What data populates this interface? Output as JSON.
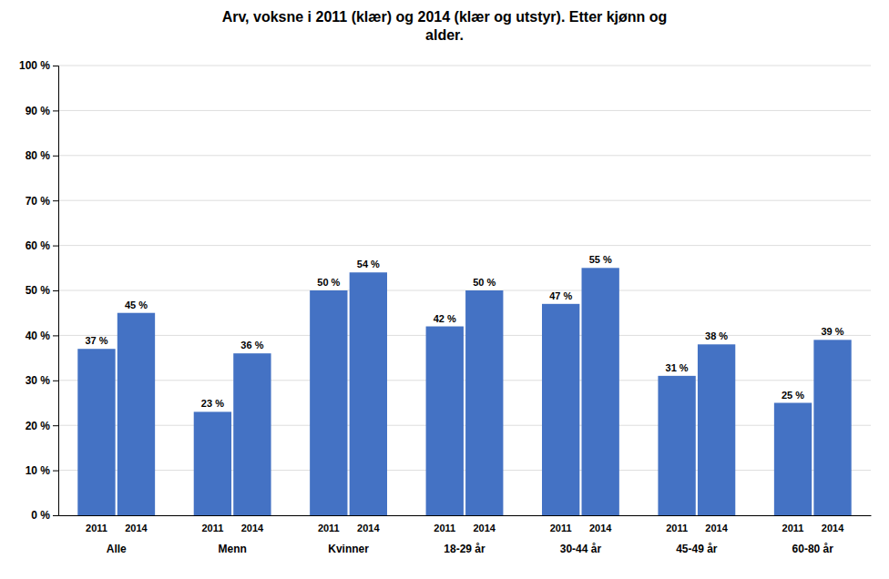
{
  "chart_data": {
    "type": "bar",
    "title": "Arv, voksne i 2011 (klær) og 2014 (klær og utstyr). Etter kjønn og\nalder.",
    "categories": [
      "Alle",
      "Menn",
      "Kvinner",
      "18-29 år",
      "30-44 år",
      "45-49 år",
      "60-80 år"
    ],
    "series": [
      {
        "name": "2011",
        "color": "#4472C4",
        "values": [
          37,
          23,
          50,
          42,
          47,
          31,
          25
        ],
        "value_labels": [
          "37 %",
          "23 %",
          "50 %",
          "42 %",
          "47 %",
          "31 %",
          "25 %"
        ]
      },
      {
        "name": "2014",
        "color": "#4472C4",
        "values": [
          45,
          36,
          54,
          50,
          55,
          38,
          39
        ],
        "value_labels": [
          "45 %",
          "36 %",
          "54 %",
          "50 %",
          "55 %",
          "38 %",
          "39 %"
        ]
      }
    ],
    "ylim": [
      0,
      100
    ],
    "yticks": [
      {
        "value": 0,
        "label": "0 %"
      },
      {
        "value": 10,
        "label": "10 %"
      },
      {
        "value": 20,
        "label": "20 %"
      },
      {
        "value": 30,
        "label": "30 %"
      },
      {
        "value": 40,
        "label": "40 %"
      },
      {
        "value": 50,
        "label": "50 %"
      },
      {
        "value": 60,
        "label": "60 %"
      },
      {
        "value": 70,
        "label": "70 %"
      },
      {
        "value": 80,
        "label": "80 %"
      },
      {
        "value": 90,
        "label": "90 %"
      },
      {
        "value": 100,
        "label": "100 %"
      }
    ],
    "grid": true,
    "data_labels": true
  }
}
